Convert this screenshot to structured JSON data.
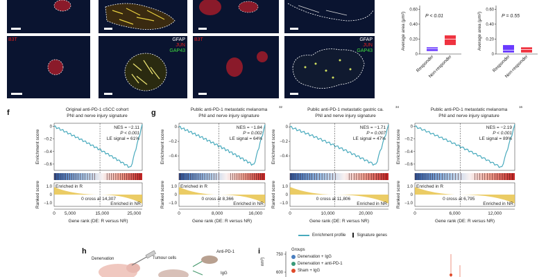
{
  "colors": {
    "curve": "#48aabd",
    "responder_box": "#6a3bff",
    "nonresponder_box": "#ef3340",
    "nr_fill": "#e7c34a",
    "nuclei": "#2a4fd6",
    "gfap": "#ffffff",
    "jun": "#e02020",
    "gap43": "#40e040",
    "b3t": "#e02020"
  },
  "micro_labels": {
    "b3t": "B3T",
    "gfap": "GFAP",
    "jun": "JUN",
    "gap43": "GAP43"
  },
  "boxplots": [
    {
      "ylabel": "Average area (μm²)",
      "ticks": [
        "0",
        "0.20",
        "0.40",
        "0.60"
      ],
      "pvalue": "P < 0.01",
      "categories": [
        "Responder",
        "Non-responder"
      ],
      "chart_data": {
        "type": "box",
        "ylim": [
          0,
          0.65
        ],
        "responder": {
          "q1": 0.04,
          "median": 0.07,
          "q3": 0.09
        },
        "non_responder": {
          "q1": 0.12,
          "median": 0.2,
          "q3": 0.25
        }
      }
    },
    {
      "ylabel": "Average area (μm²)",
      "ticks": [
        "0",
        "0.20",
        "0.40",
        "0.60"
      ],
      "pvalue": "P = 0.55",
      "categories": [
        "Responder",
        "Non-responder"
      ],
      "chart_data": {
        "type": "box",
        "ylim": [
          0,
          0.65
        ],
        "responder": {
          "q1": 0.02,
          "median": 0.05,
          "q3": 0.12
        },
        "non_responder": {
          "q1": 0.02,
          "median": 0.06,
          "q3": 0.09
        }
      }
    }
  ],
  "gsea": [
    {
      "letter": "f",
      "title1": "Original anti-PD-1 cSCC cohort",
      "title2": "PNI and nerve injury signature",
      "nes": "NES = −2.11",
      "p": "P < 0.001",
      "le": "LE signal = 61%",
      "cross": "0 cross at 14,307",
      "es_ticks": [
        "0",
        "−0.2",
        "−0.4",
        "−0.6"
      ],
      "rank_ticks": [
        "1.0",
        "0",
        "−1.0"
      ],
      "x_ticks": [
        "0",
        "5,000",
        "15,000",
        "25,000"
      ],
      "enriched_r": "Enriched in R",
      "enriched_nr": "Enriched in NR",
      "chart_data": {
        "type": "line",
        "ylim": [
          -0.7,
          0.05
        ],
        "xmax": 27500,
        "cross": 14307,
        "min_es": -0.66
      }
    },
    {
      "letter": "g",
      "title1": "Public anti-PD-1 metastatic melanoma",
      "sup": "32",
      "title2": "PNI and nerve injury signature",
      "nes": "NES = −1.84",
      "p": "P = 0.002",
      "le": "LE signal = 64%",
      "cross": "0 cross at 8,366",
      "es_ticks": [
        "0",
        "−0.2",
        "−0.4"
      ],
      "rank_ticks": [
        "1.0",
        "0",
        "−1.0"
      ],
      "x_ticks": [
        "0",
        "8,000",
        "16,000"
      ],
      "enriched_r": "Enriched in R",
      "enriched_nr": "Enriched in NR",
      "chart_data": {
        "type": "line",
        "ylim": [
          -0.6,
          0.05
        ],
        "xmax": 18000,
        "cross": 8366,
        "min_es": -0.53
      }
    },
    {
      "letter": "",
      "title1": "Public anti-PD-1 metastatic gastric ca.",
      "sup": "34",
      "title2": "PNI and nerve injury signature",
      "nes": "NES = −1.71",
      "p": "P = 0.007",
      "le": "LE signal = 47%",
      "cross": "0 cross at 11,806",
      "es_ticks": [
        "0",
        "−0.2",
        "−0.4"
      ],
      "rank_ticks": [
        "1.0",
        "0",
        "−1.0"
      ],
      "x_ticks": [
        "0",
        "10,000",
        "20,000"
      ],
      "enriched_r": "",
      "enriched_nr": "Enriched in NR",
      "chart_data": {
        "type": "line",
        "ylim": [
          -0.6,
          0.05
        ],
        "xmax": 26000,
        "cross": 11806,
        "min_es": -0.53
      }
    },
    {
      "letter": "",
      "title1": "Public anti-PD-1 metastatic melanoma",
      "sup": "16",
      "title2": "PNI and nerve injury signature",
      "nes": "NES = −2.19",
      "p": "P < 0.001",
      "le": "LE signal = 89%",
      "cross": "0 cross at 6,795",
      "es_ticks": [
        "0",
        "−0.2",
        "−0.4",
        "−0.6"
      ],
      "rank_ticks": [
        "1.0",
        "0",
        "−1.0"
      ],
      "x_ticks": [
        "0",
        "6,000",
        "12,000"
      ],
      "enriched_r": "Enriched in R",
      "enriched_nr": "Enriched in NR",
      "chart_data": {
        "type": "line",
        "ylim": [
          -0.7,
          0.05
        ],
        "xmax": 15000,
        "cross": 6795,
        "min_es": -0.66
      }
    }
  ],
  "common": {
    "es_label": "Enrichment score",
    "rank_label": "Ranked score",
    "x_label": "Gene rank (DE: R versus NR)"
  },
  "legend": {
    "profile": "Enrichment profile",
    "signature": "Signature genes"
  },
  "panel_h": {
    "letter": "h",
    "denervation": "Denervation",
    "tumour_cells": "Tumour cells",
    "anti_pd1": "Anti-PD-1",
    "igg": "IgG"
  },
  "panel_i": {
    "letter": "i",
    "groups_title": "Groups",
    "groups": [
      {
        "label": "Denervation + IgG",
        "color": "#4a7fc0"
      },
      {
        "label": "Denervation + anti-PD-1",
        "color": "#3a9a7a"
      },
      {
        "label": "Sham + IgG",
        "color": "#e04a2a"
      }
    ],
    "y_ticks": [
      "750",
      "600"
    ],
    "ylabel_fragment": "nm³)"
  }
}
